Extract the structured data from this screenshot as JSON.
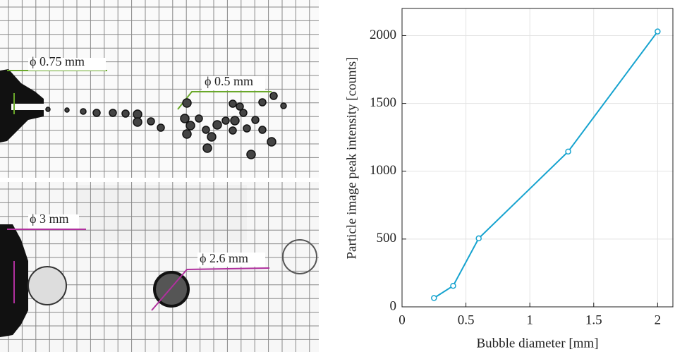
{
  "photos": {
    "labels": [
      "ϕ 0.75 mm",
      "ϕ 0.5 mm",
      "ϕ 3 mm",
      "ϕ 2.6 mm"
    ]
  },
  "chart_data": {
    "type": "line",
    "xlabel": "Bubble diameter [mm]",
    "ylabel": "Particle image peak intensity [counts]",
    "x": [
      0.25,
      0.4,
      0.6,
      1.3,
      2.0
    ],
    "values": [
      65,
      155,
      505,
      1145,
      2030
    ],
    "color": "#16a3cf",
    "xlim": [
      0,
      2.125
    ],
    "xticks": [
      0,
      0.5,
      1,
      1.5,
      2
    ],
    "ylim": [
      0,
      2200
    ],
    "yticks": [
      0,
      500,
      1000,
      1500,
      2000
    ],
    "grid": true
  }
}
